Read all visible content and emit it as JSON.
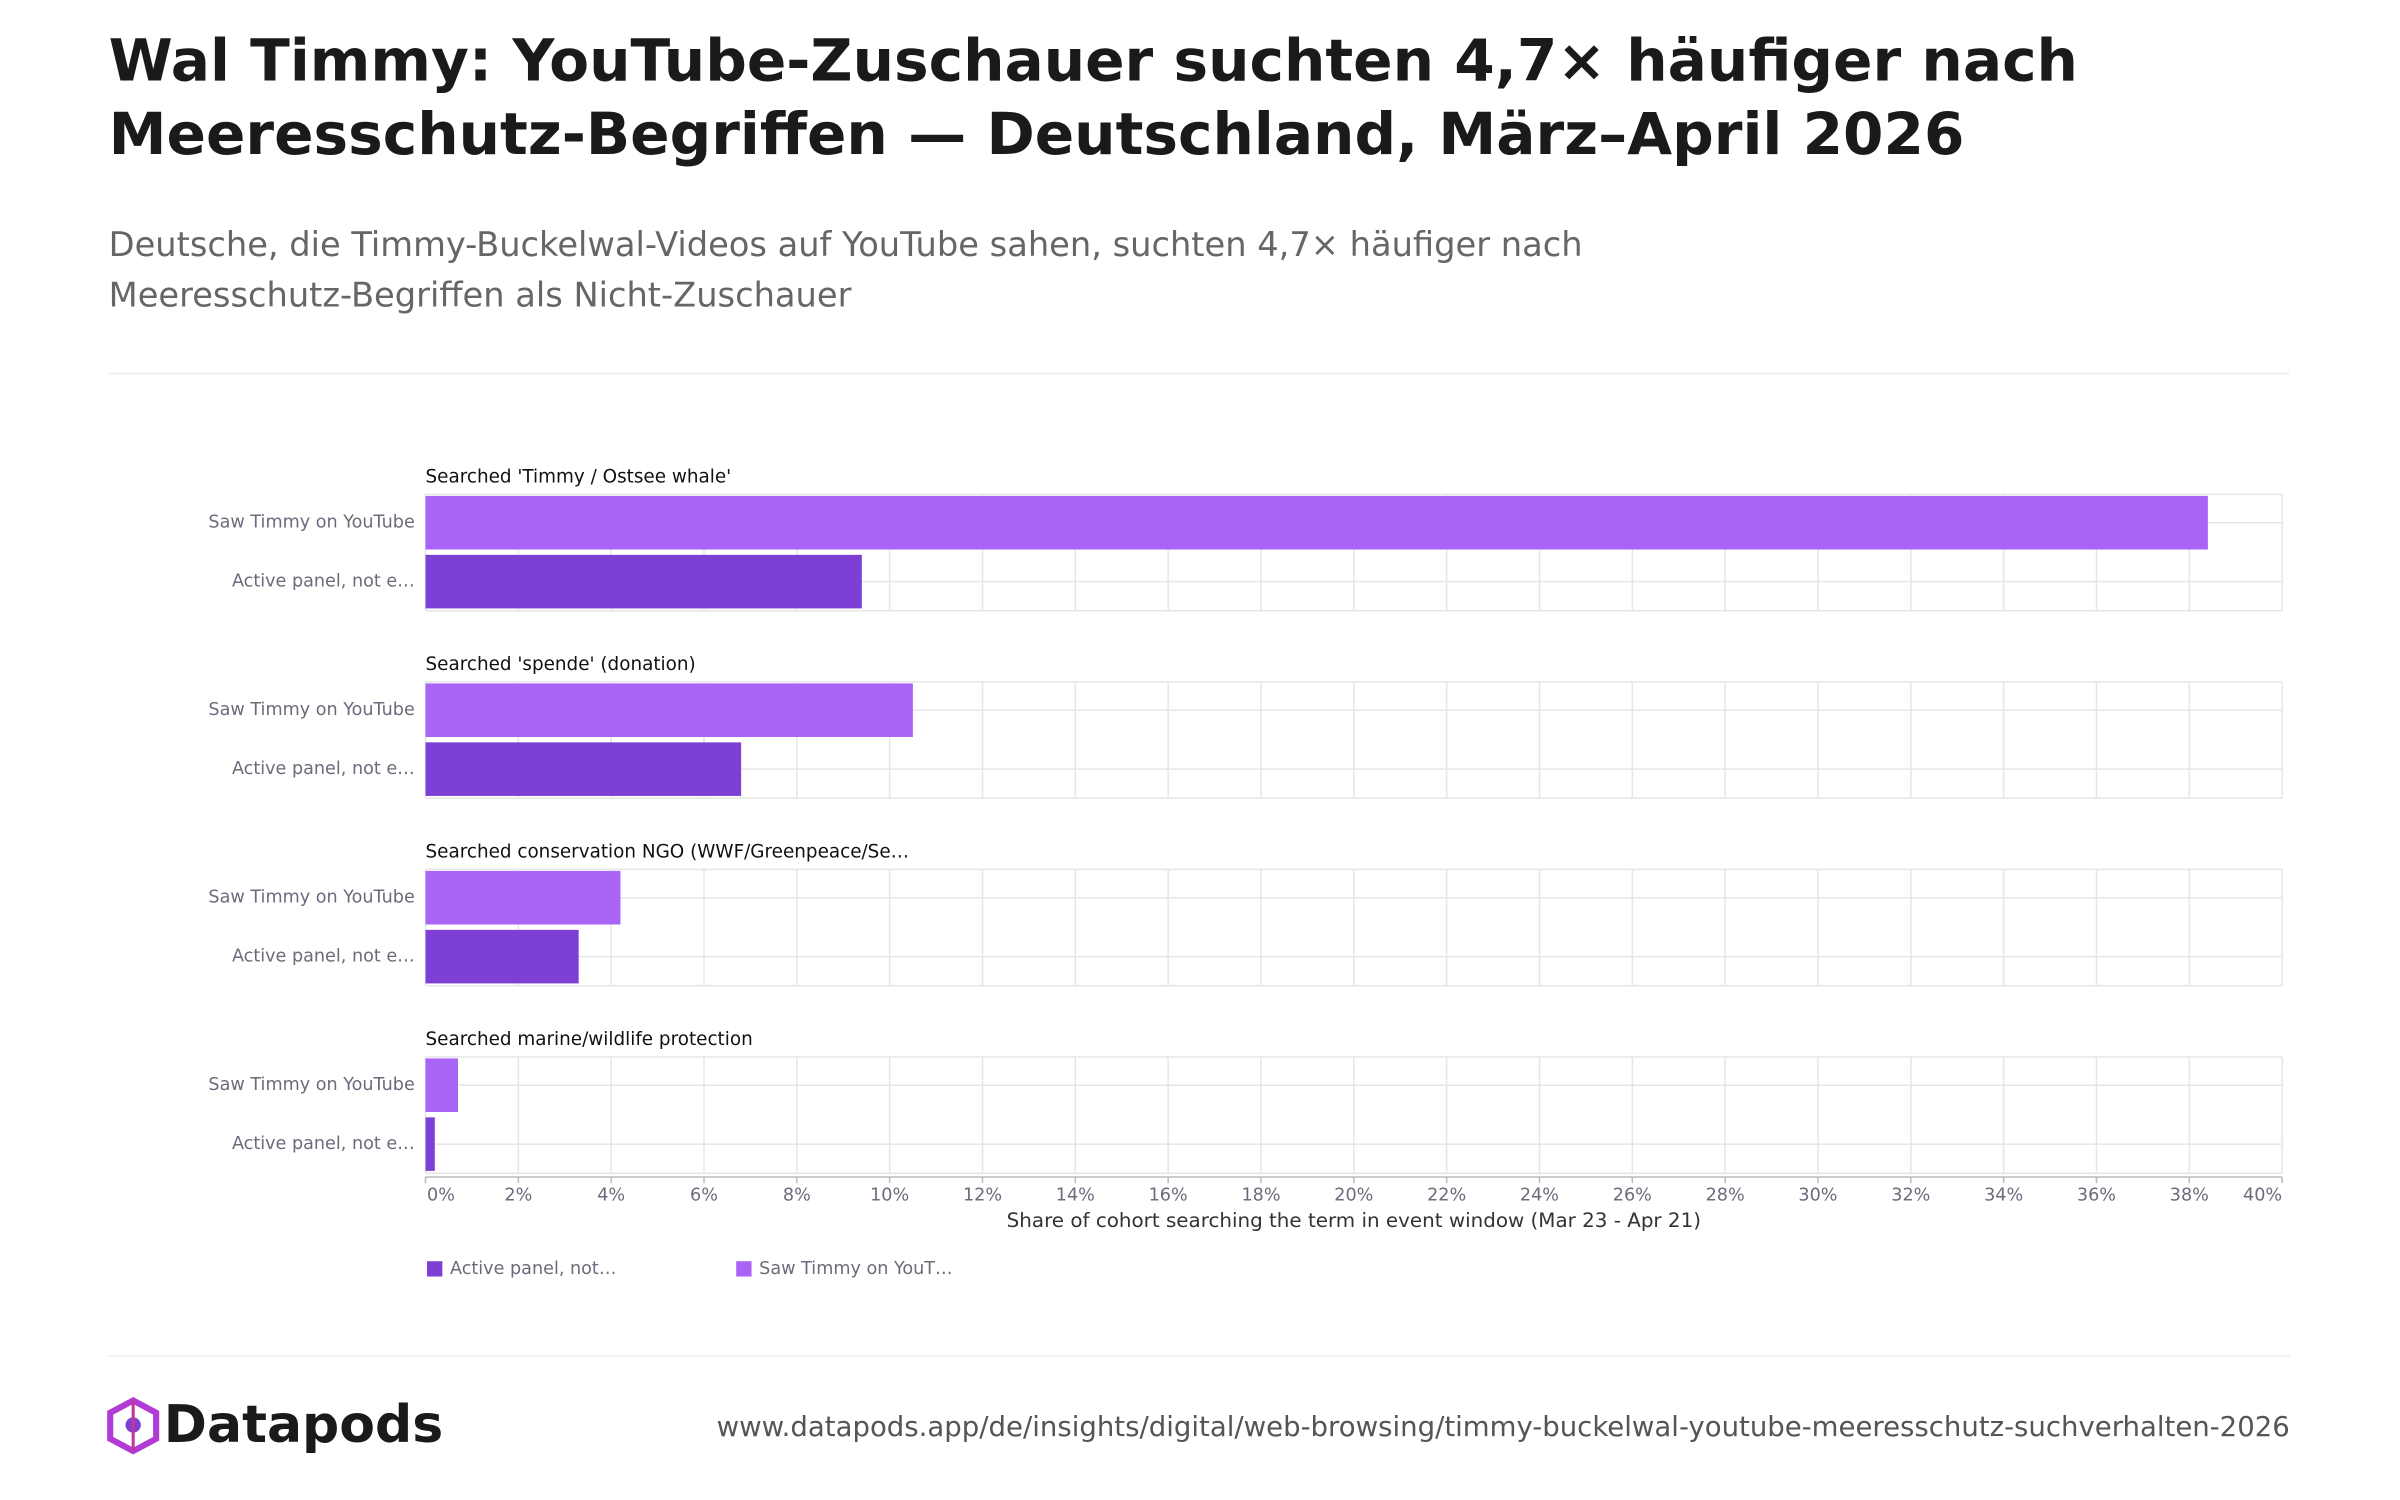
{
  "chart_data": {
    "type": "bar",
    "orientation": "horizontal",
    "title_lines": [
      "Wal Timmy: YouTube-Zuschauer suchten 4,7× häufiger nach",
      "Meeresschutz-Begriffen — Deutschland, März–April 2026"
    ],
    "subtitle_lines": [
      "Deutsche, die Timmy-Buckelwal-Videos auf YouTube sahen, suchten 4,7× häufiger nach",
      "Meeresschutz-Begriffen als Nicht-Zuschauer"
    ],
    "xlabel": "Share of cohort searching the term in event window (Mar 23 - Apr 21)",
    "categories": [
      "Saw Timmy on YouTube",
      "Active panel, not e…"
    ],
    "colors": [
      "#a963f5",
      "#7e3fd4"
    ],
    "panels": [
      {
        "title": "Searched 'Timmy / Ostsee whale'",
        "values": [
          38.4,
          9.4
        ]
      },
      {
        "title": "Searched 'spende' (donation)",
        "values": [
          10.5,
          6.8
        ]
      },
      {
        "title": "Searched conservation NGO (WWF/Greenpeace/Se…",
        "values": [
          4.2,
          3.3
        ]
      },
      {
        "title": "Searched marine/wildlife protection",
        "values": [
          0.7,
          0.2
        ]
      }
    ],
    "xlim": [
      0,
      40
    ],
    "xticks": [
      {
        "value": 0,
        "label": "0%"
      },
      {
        "value": 2,
        "label": "2%"
      },
      {
        "value": 4,
        "label": "4%"
      },
      {
        "value": 6,
        "label": "6%"
      },
      {
        "value": 8,
        "label": "8%"
      },
      {
        "value": 10,
        "label": "10%"
      },
      {
        "value": 12,
        "label": "12%"
      },
      {
        "value": 14,
        "label": "14%"
      },
      {
        "value": 16,
        "label": "16%"
      },
      {
        "value": 18,
        "label": "18%"
      },
      {
        "value": 20,
        "label": "20%"
      },
      {
        "value": 22,
        "label": "22%"
      },
      {
        "value": 24,
        "label": "24%"
      },
      {
        "value": 26,
        "label": "26%"
      },
      {
        "value": 28,
        "label": "28%"
      },
      {
        "value": 30,
        "label": "30%"
      },
      {
        "value": 32,
        "label": "32%"
      },
      {
        "value": 34,
        "label": "34%"
      },
      {
        "value": 36,
        "label": "36%"
      },
      {
        "value": 38,
        "label": "38%"
      },
      {
        "value": 40,
        "label": "40%"
      }
    ],
    "grid": true,
    "legend": [
      {
        "name": "Active panel, not…",
        "color": "#7e3fd4"
      },
      {
        "name": "Saw Timmy on YouT…",
        "color": "#a963f5"
      }
    ]
  },
  "footer": {
    "brand": "Datapods",
    "url": "www.datapods.app/de/insights/digital/web-browsing/timmy-buckelwal-youtube-meeresschutz-suchverhalten-2026"
  }
}
